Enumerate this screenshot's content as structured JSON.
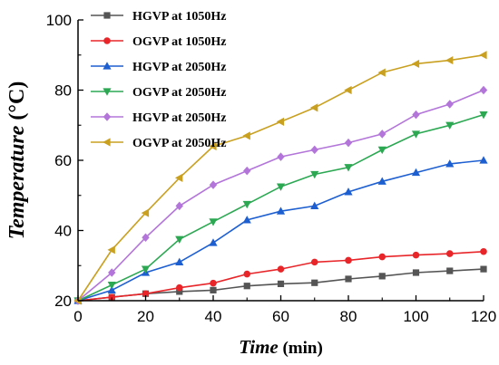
{
  "chart_data": {
    "type": "line",
    "xlabel": {
      "italic": "Time",
      "normal": " (min)"
    },
    "ylabel": {
      "italic": "Temperature",
      "normal": " (°C)"
    },
    "xlim": [
      0,
      120
    ],
    "ylim": [
      20,
      100
    ],
    "xticks": [
      "0",
      "20",
      "40",
      "60",
      "80",
      "100",
      "120"
    ],
    "yticks": [
      "20",
      "40",
      "60",
      "80",
      "100"
    ],
    "x": [
      0,
      10,
      20,
      30,
      40,
      50,
      60,
      70,
      80,
      90,
      100,
      110,
      120
    ],
    "grid": false,
    "legend_position": "top-left",
    "series": [
      {
        "name": "HGVP at 1050Hz",
        "color": "#555555",
        "marker": "square",
        "values": [
          20,
          21,
          22,
          22.6,
          23,
          24.2,
          24.8,
          25.1,
          26.2,
          27,
          28,
          28.5,
          29
        ]
      },
      {
        "name": "OGVP at 1050Hz",
        "color": "#e8262a",
        "marker": "circle",
        "values": [
          20,
          21,
          22,
          23.7,
          25,
          27.6,
          29,
          31,
          31.5,
          32.5,
          33,
          33.4,
          34
        ]
      },
      {
        "name": "HGVP at 2050Hz",
        "color": "#1d5fd1",
        "marker": "triangle-up",
        "values": [
          20,
          23,
          28,
          31,
          36.5,
          43,
          45.5,
          47,
          51,
          54,
          56.5,
          59,
          60
        ]
      },
      {
        "name": "OGVP at 2050Hz",
        "color": "#2ca853",
        "marker": "triangle-down",
        "values": [
          20,
          24.5,
          29,
          37.5,
          42.5,
          47.5,
          52.5,
          56,
          58,
          63,
          67.5,
          70,
          73
        ]
      },
      {
        "name": "HGVP at 2050Hz",
        "color": "#b375d9",
        "marker": "diamond",
        "values": [
          20,
          28,
          38,
          47,
          53,
          57,
          61,
          63,
          65,
          67.5,
          73,
          76,
          80
        ]
      },
      {
        "name": "OGVP at 2050Hz",
        "color": "#c9a020",
        "marker": "triangle-left",
        "values": [
          20,
          34.5,
          45,
          55,
          64,
          67,
          71,
          75,
          80,
          85,
          87.5,
          88.5,
          90
        ]
      }
    ]
  }
}
